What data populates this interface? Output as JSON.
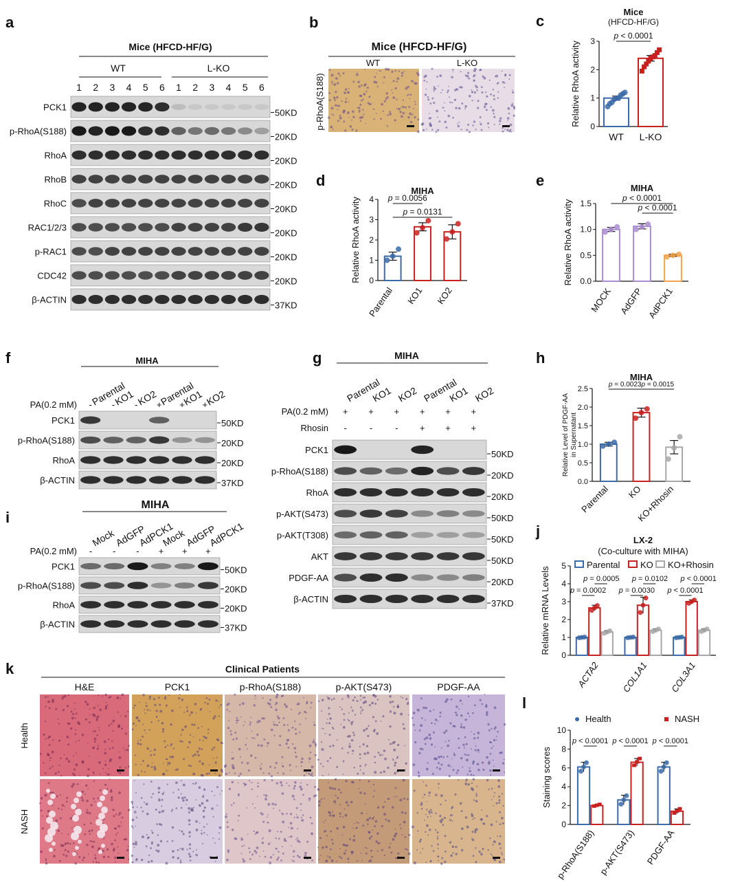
{
  "panel_letters": [
    "a",
    "b",
    "c",
    "d",
    "e",
    "f",
    "g",
    "h",
    "i",
    "j",
    "k",
    "l"
  ],
  "panel_a": {
    "title": "Mice (HFCD-HF/G)",
    "group_labels": [
      "WT",
      "L-KO"
    ],
    "lane_numbers": [
      "1",
      "2",
      "3",
      "4",
      "5",
      "6",
      "1",
      "2",
      "3",
      "4",
      "5",
      "6"
    ],
    "rows": [
      {
        "label": "PCK1",
        "size": "50KD",
        "intensity": [
          0.9,
          0.9,
          0.9,
          0.9,
          0.9,
          0.85,
          0.15,
          0.1,
          0.1,
          0.1,
          0.1,
          0.1
        ]
      },
      {
        "label": "p-RhoA(S188)",
        "size": "20KD",
        "intensity": [
          0.95,
          0.9,
          0.95,
          0.95,
          0.85,
          0.85,
          0.6,
          0.5,
          0.55,
          0.5,
          0.4,
          0.3
        ]
      },
      {
        "label": "RhoA",
        "size": "20KD",
        "intensity": [
          0.85,
          0.85,
          0.85,
          0.85,
          0.85,
          0.85,
          0.85,
          0.85,
          0.85,
          0.85,
          0.85,
          0.85
        ]
      },
      {
        "label": "RhoB",
        "size": "20KD",
        "intensity": [
          0.75,
          0.75,
          0.75,
          0.75,
          0.75,
          0.75,
          0.75,
          0.75,
          0.75,
          0.75,
          0.75,
          0.75
        ]
      },
      {
        "label": "RhoC",
        "size": "20KD",
        "intensity": [
          0.7,
          0.75,
          0.75,
          0.75,
          0.75,
          0.75,
          0.75,
          0.75,
          0.75,
          0.75,
          0.75,
          0.75
        ]
      },
      {
        "label": "RAC1/2/3",
        "size": "20KD",
        "intensity": [
          0.7,
          0.7,
          0.7,
          0.7,
          0.7,
          0.7,
          0.75,
          0.75,
          0.75,
          0.75,
          0.8,
          0.8
        ]
      },
      {
        "label": "p-RAC1",
        "size": "20KD",
        "intensity": [
          0.7,
          0.7,
          0.75,
          0.75,
          0.75,
          0.75,
          0.75,
          0.75,
          0.75,
          0.75,
          0.75,
          0.75
        ]
      },
      {
        "label": "CDC42",
        "size": "20KD",
        "intensity": [
          0.7,
          0.7,
          0.7,
          0.7,
          0.7,
          0.7,
          0.75,
          0.75,
          0.75,
          0.75,
          0.75,
          0.75
        ]
      },
      {
        "label": "β-ACTIN",
        "size": "37KD",
        "intensity": [
          0.85,
          0.85,
          0.85,
          0.85,
          0.85,
          0.85,
          0.85,
          0.85,
          0.85,
          0.85,
          0.85,
          0.85
        ]
      }
    ]
  },
  "panel_b": {
    "title": "Mice (HFCD-HF/G)",
    "ylabel": "p-RhoA(S188)",
    "images": [
      "WT",
      "L-KO"
    ]
  },
  "panel_f": {
    "title": "MIHA",
    "lanes": [
      "Parental",
      "KO1",
      "KO2",
      "Parental",
      "KO1",
      "KO2"
    ],
    "pa_label": "PA(0.2 mM)",
    "pa_signs": [
      "-",
      "-",
      "-",
      "+",
      "+",
      "+"
    ],
    "rows": [
      {
        "label": "PCK1",
        "size": "50KD",
        "intensity": [
          0.8,
          0,
          0,
          0.6,
          0,
          0
        ]
      },
      {
        "label": "p-RhoA(S188)",
        "size": "20KD",
        "intensity": [
          0.7,
          0.6,
          0.6,
          0.8,
          0.35,
          0.35
        ]
      },
      {
        "label": "RhoA",
        "size": "20KD",
        "intensity": [
          0.85,
          0.85,
          0.85,
          0.85,
          0.85,
          0.85
        ]
      },
      {
        "label": "β-ACTIN",
        "size": "37KD",
        "intensity": [
          0.85,
          0.85,
          0.85,
          0.85,
          0.85,
          0.85
        ]
      }
    ]
  },
  "panel_g": {
    "title": "MIHA",
    "lanes": [
      "Mock",
      "AdGFP",
      "AdPCK1",
      "Mock",
      "AdGFP",
      "AdPCK1"
    ],
    "pa_label": "PA(0.2 mM)",
    "pa_signs": [
      "-",
      "-",
      "-",
      "+",
      "+",
      "+"
    ],
    "rows": [
      {
        "label": "PCK1",
        "size": "50KD",
        "intensity": [
          0.55,
          0.55,
          0.95,
          0.45,
          0.45,
          0.95
        ]
      },
      {
        "label": "p-RhoA(S188)",
        "size": "20KD",
        "intensity": [
          0.7,
          0.7,
          0.85,
          0.35,
          0.45,
          0.8
        ]
      },
      {
        "label": "RhoA",
        "size": "20KD",
        "intensity": [
          0.85,
          0.85,
          0.85,
          0.85,
          0.85,
          0.85
        ]
      },
      {
        "label": "β-ACTIN",
        "size": "37KD",
        "intensity": [
          0.85,
          0.85,
          0.85,
          0.85,
          0.85,
          0.85
        ]
      }
    ]
  },
  "panel_h": {
    "title": "MIHA",
    "lanes": [
      "Parental",
      "KO1",
      "KO2",
      "Parental",
      "KO1",
      "KO2"
    ],
    "treatments": [
      {
        "label": "PA(0.2 mM)",
        "signs": [
          "+",
          "+",
          "+",
          "+",
          "+",
          "+"
        ]
      },
      {
        "label": "Rhosin",
        "signs": [
          "-",
          "-",
          "-",
          "+",
          "+",
          "+"
        ]
      }
    ],
    "rows": [
      {
        "label": "PCK1",
        "size": "50KD",
        "intensity": [
          0.95,
          0,
          0,
          0.9,
          0,
          0
        ]
      },
      {
        "label": "p-RhoA(S188)",
        "size": "20KD",
        "intensity": [
          0.7,
          0.6,
          0.55,
          0.9,
          0.7,
          0.8
        ]
      },
      {
        "label": "RhoA",
        "size": "20KD",
        "intensity": [
          0.85,
          0.85,
          0.85,
          0.85,
          0.85,
          0.85
        ]
      },
      {
        "label": "p-AKT(S473)",
        "size": "50KD",
        "intensity": [
          0.7,
          0.8,
          0.75,
          0.4,
          0.45,
          0.4
        ]
      },
      {
        "label": "p-AKT(T308)",
        "size": "50KD",
        "intensity": [
          0.55,
          0.6,
          0.6,
          0.3,
          0.3,
          0.3
        ]
      },
      {
        "label": "AKT",
        "size": "50KD",
        "intensity": [
          0.8,
          0.8,
          0.8,
          0.8,
          0.8,
          0.8
        ]
      },
      {
        "label": "PDGF-AA",
        "size": "20KD",
        "intensity": [
          0.7,
          0.85,
          0.85,
          0.4,
          0.4,
          0.45
        ]
      },
      {
        "label": "β-ACTIN",
        "size": "37KD",
        "intensity": [
          0.85,
          0.85,
          0.85,
          0.85,
          0.85,
          0.85
        ]
      }
    ]
  },
  "panel_k": {
    "title": "Clinical Patients",
    "columns": [
      "H&E",
      "PCK1",
      "p-RhoA(S188)",
      "p-AKT(S473)",
      "PDGF-AA"
    ],
    "rows": [
      "Health",
      "NASH"
    ]
  },
  "chart_data": [
    {
      "panel": "c",
      "type": "bar",
      "title": "Mice",
      "subtitle": "(HFCD-HF/G)",
      "categories": [
        "WT",
        "L-KO"
      ],
      "values": [
        1.0,
        2.4
      ],
      "errors": [
        0.07,
        0.1
      ],
      "points": [
        [
          0.7,
          0.8,
          0.85,
          0.95,
          1.0,
          1.0,
          1.1,
          1.15,
          1.2
        ],
        [
          1.95,
          2.1,
          2.2,
          2.3,
          2.4,
          2.45,
          2.5,
          2.6,
          2.7
        ]
      ],
      "colors": [
        "#3a6aa8",
        "#c8201f"
      ],
      "markers": [
        "circle",
        "square"
      ],
      "ylabel": "Relative RhoA activity",
      "ylim": [
        0,
        3
      ],
      "yticks": [
        0,
        1,
        2,
        3
      ],
      "annotations": [
        {
          "text": "p < 0.0001",
          "from": 0,
          "to": 1
        }
      ]
    },
    {
      "panel": "d",
      "type": "bar",
      "title": "MIHA",
      "categories": [
        "Parental",
        "KO1",
        "KO2"
      ],
      "values": [
        1.2,
        2.65,
        2.4
      ],
      "errors": [
        0.2,
        0.2,
        0.35
      ],
      "points": [
        [
          1.0,
          1.2,
          1.55
        ],
        [
          2.35,
          2.6,
          2.95
        ],
        [
          2.05,
          2.4,
          2.8
        ]
      ],
      "colors": [
        "#3a6aa8",
        "#c8201f",
        "#c8201f"
      ],
      "markers": [
        "circle",
        "circle",
        "circle"
      ],
      "ylabel": "Relative RhoA activity",
      "ylim": [
        0,
        4
      ],
      "yticks": [
        0,
        1,
        2,
        3,
        4
      ],
      "annotations": [
        {
          "text": "p = 0.0056",
          "from": 0,
          "to": 1
        },
        {
          "text": "p = 0.0131",
          "from": 0,
          "to": 2
        }
      ]
    },
    {
      "panel": "e",
      "type": "bar",
      "title": "MIHA",
      "categories": [
        "MOCK",
        "AdGFP",
        "AdPCK1"
      ],
      "values": [
        1.0,
        1.06,
        0.5
      ],
      "errors": [
        0.04,
        0.05,
        0.02
      ],
      "points": [
        [
          0.95,
          1.0,
          1.05
        ],
        [
          1.0,
          1.05,
          1.1
        ],
        [
          0.47,
          0.5,
          0.52
        ]
      ],
      "colors": [
        "#a98ccf",
        "#a98ccf",
        "#f2a24a"
      ],
      "markers": [
        "circle",
        "circle",
        "circle"
      ],
      "ylabel": "Relative RhoA activity",
      "ylim": [
        0,
        1.5
      ],
      "yticks": [
        0.0,
        0.5,
        1.0,
        1.5
      ],
      "annotations": [
        {
          "text": "p < 0.0001",
          "from": 0,
          "to": 2
        },
        {
          "text": "p < 0.0001",
          "from": 1,
          "to": 2
        }
      ]
    },
    {
      "panel": "i",
      "type": "bar",
      "title": "MIHA",
      "categories": [
        "Parental",
        "KO",
        "KO+Rhosin"
      ],
      "values": [
        1.0,
        1.85,
        0.92
      ],
      "errors": [
        0.05,
        0.12,
        0.18
      ],
      "points": [
        [
          0.95,
          1.0,
          1.05
        ],
        [
          1.7,
          1.85,
          1.95
        ],
        [
          0.6,
          0.9,
          1.2
        ]
      ],
      "colors": [
        "#3a6aa8",
        "#c8201f",
        "#a8a8a8"
      ],
      "markers": [
        "circle",
        "circle",
        "circle"
      ],
      "ylabel": "Relative Level of PDGF-AA in Supernatant",
      "ylabel_lines": [
        "Relative Level of PDGF-AA",
        "in Supernatant"
      ],
      "ylim": [
        0,
        2.5
      ],
      "yticks": [
        0.0,
        0.5,
        1.0,
        1.5,
        2.0,
        2.5
      ],
      "annotations": [
        {
          "text": "p = 0.0023",
          "from": 0,
          "to": 1
        },
        {
          "text": "p = 0.0015",
          "from": 1,
          "to": 2
        }
      ]
    },
    {
      "panel": "j",
      "type": "bar",
      "title": "LX-2",
      "subtitle": "(Co-culture with MIHA)",
      "categories": [
        "ACTA2",
        "COL1A1",
        "COL3A1"
      ],
      "series": [
        {
          "name": "Parental",
          "values": [
            1.0,
            1.0,
            1.0
          ],
          "errors": [
            0.02,
            0.02,
            0.02
          ],
          "color": "#3a6aa8"
        },
        {
          "name": "KO",
          "values": [
            2.65,
            2.8,
            3.0
          ],
          "errors": [
            0.15,
            0.45,
            0.1
          ],
          "color": "#c8201f"
        },
        {
          "name": "KO+Rhosin",
          "values": [
            1.3,
            1.4,
            1.4
          ],
          "errors": [
            0.08,
            0.08,
            0.08
          ],
          "color": "#a8a8a8"
        }
      ],
      "ylabel": "Relative mRNA Levels",
      "ylim": [
        0,
        5
      ],
      "yticks": [
        0,
        1,
        2,
        3,
        4,
        5
      ],
      "annotations": [
        {
          "text": "p = 0.0002",
          "group": 0,
          "level": 0
        },
        {
          "text": "p = 0.0005",
          "group": 0,
          "level": 1
        },
        {
          "text": "p = 0.0030",
          "group": 1,
          "level": 0
        },
        {
          "text": "p = 0.0102",
          "group": 1,
          "level": 1
        },
        {
          "text": "p < 0.0001",
          "group": 2,
          "level": 0
        },
        {
          "text": "p < 0.0001",
          "group": 2,
          "level": 1
        }
      ]
    },
    {
      "panel": "l",
      "type": "bar",
      "categories": [
        "p-RhoA(S188)",
        "p-AKT(S473)",
        "PDGF-AA"
      ],
      "series": [
        {
          "name": "Health",
          "values": [
            6.1,
            2.6,
            6.1
          ],
          "errors": [
            0.5,
            0.5,
            0.5
          ],
          "color": "#3a6aa8"
        },
        {
          "name": "NASH",
          "values": [
            2.0,
            6.6,
            1.4
          ],
          "errors": [
            0.1,
            0.4,
            0.25
          ],
          "color": "#c8201f"
        }
      ],
      "ylabel": "Staining scores",
      "ylim": [
        0,
        10
      ],
      "yticks": [
        0,
        2,
        4,
        6,
        8,
        10
      ],
      "annotations": [
        {
          "text": "p < 0.0001",
          "group": 0
        },
        {
          "text": "p < 0.0001",
          "group": 1
        },
        {
          "text": "p < 0.0001",
          "group": 2
        }
      ]
    }
  ]
}
